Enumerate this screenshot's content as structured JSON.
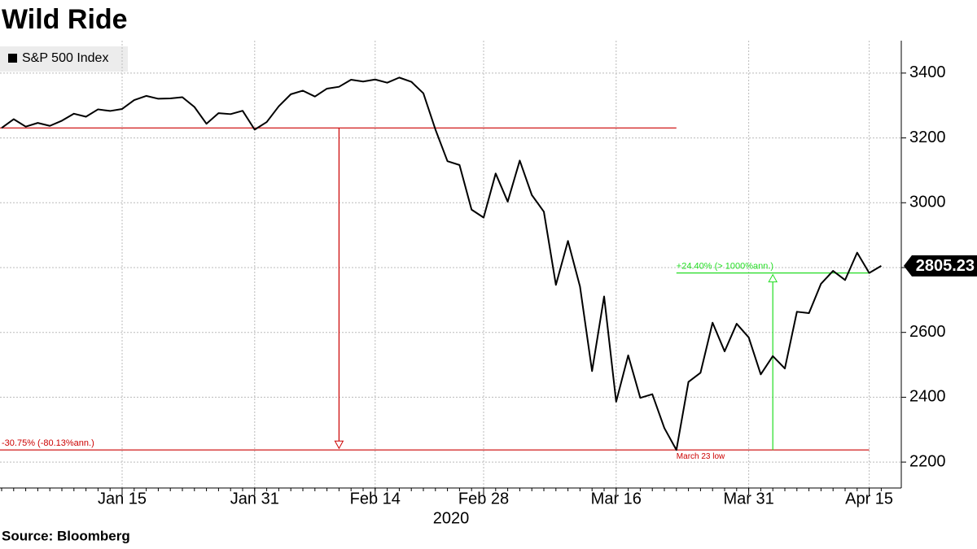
{
  "chart_data": {
    "type": "line",
    "title": "Wild Ride",
    "source": "Source: Bloomberg",
    "x_sublabel": "2020",
    "categories": [
      null,
      null,
      null,
      null,
      null,
      null,
      null,
      null,
      null,
      null,
      "Jan 15",
      null,
      null,
      null,
      null,
      null,
      null,
      null,
      null,
      null,
      null,
      "Jan 31",
      null,
      null,
      null,
      null,
      null,
      null,
      null,
      null,
      null,
      "Feb 14",
      null,
      null,
      null,
      null,
      null,
      null,
      null,
      null,
      "Feb 28",
      null,
      null,
      null,
      null,
      null,
      null,
      null,
      null,
      null,
      null,
      "Mar 16",
      null,
      null,
      null,
      null,
      null,
      null,
      null,
      null,
      null,
      null,
      "Mar 31",
      null,
      null,
      null,
      null,
      null,
      null,
      null,
      null,
      null,
      "Apr 15",
      null
    ],
    "series": [
      {
        "name": "S&P 500 Index",
        "color": "#000000",
        "values": [
          3230.78,
          3257.85,
          3234.85,
          3246.28,
          3237.18,
          3253.05,
          3274.7,
          3265.35,
          3288.13,
          3283.15,
          3289.29,
          3316.81,
          3329.62,
          3320.79,
          3321.75,
          3325.54,
          3295.47,
          3243.63,
          3276.24,
          3273.4,
          3283.66,
          3225.52,
          3248.92,
          3297.59,
          3334.69,
          3345.78,
          3327.71,
          3352.09,
          3357.75,
          3379.45,
          3373.94,
          3380.16,
          3370.29,
          3386.15,
          3373.23,
          3337.75,
          3225.89,
          3128.21,
          3116.39,
          2978.76,
          2954.22,
          3090.23,
          3003.37,
          3130.12,
          3023.94,
          2972.37,
          2746.56,
          2882.23,
          2741.38,
          2480.64,
          2711.02,
          2386.13,
          2529.19,
          2398.1,
          2409.39,
          2304.92,
          2237.4,
          2447.33,
          2475.56,
          2630.07,
          2541.47,
          2626.65,
          2584.59,
          2470.5,
          2526.9,
          2488.65,
          2663.68,
          2659.41,
          2749.98,
          2789.82,
          2761.63,
          2846.06,
          2783.36,
          2805.23
        ]
      }
    ],
    "ylim": [
      2120,
      3500
    ],
    "yticks": [
      2200,
      2400,
      2600,
      2800,
      3000,
      3200,
      3400
    ],
    "grid": true,
    "annotations": {
      "decline": "-30.75% (-80.13%ann.)",
      "rebound": "+24.40% (> 1000%ann.)",
      "low": "March 23 low"
    },
    "decline_color": "#cc0000",
    "rebound_color": "#22dd22"
  }
}
